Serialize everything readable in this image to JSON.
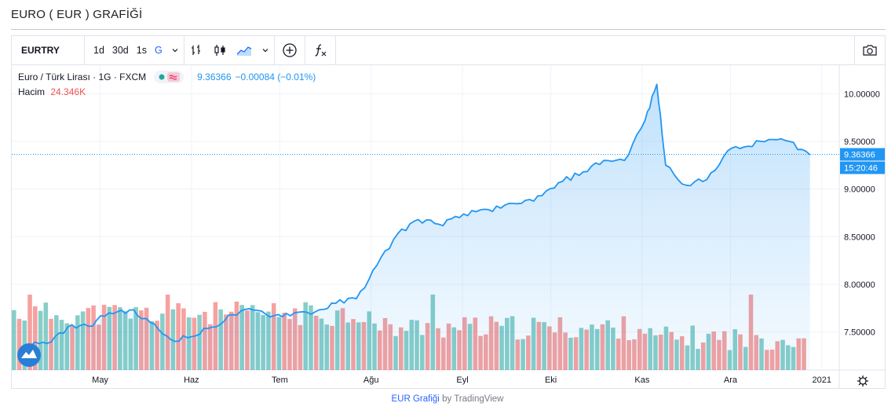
{
  "page": {
    "title": "EURO ( EUR ) GRAFİĞİ"
  },
  "toolbar": {
    "symbol": "EURTRY",
    "intervals": [
      "1d",
      "30d",
      "1s",
      "G"
    ],
    "active_interval": "G"
  },
  "legend": {
    "series_name": "Euro / Türk Lirası · 1G · FXCM",
    "last_value": "9.36366",
    "change": "−0.00084 (−0.01%)",
    "volume_label": "Hacim",
    "volume_value": "24.346K"
  },
  "price_axis": {
    "ticks": [
      "10.00000",
      "9.50000",
      "9.00000",
      "8.50000",
      "8.00000",
      "7.50000"
    ],
    "last_price_label": "9.36366",
    "countdown_label": "15:20:46"
  },
  "time_axis": {
    "ticks": [
      "May",
      "Haz",
      "Tem",
      "Ağu",
      "Eyl",
      "Eki",
      "Kas",
      "Ara",
      "2021"
    ]
  },
  "colors": {
    "line": "#2196f3",
    "up": "#26a69a",
    "down": "#ef5350",
    "accent": "#2962ff"
  },
  "footer": {
    "link_text": "EUR Grafiği",
    "by_text": "by TradingView"
  },
  "chart_data": {
    "type": "area",
    "x": [
      "2020-04-06",
      "2020-04-13",
      "2020-04-20",
      "2020-04-27",
      "2020-05-04",
      "2020-05-11",
      "2020-05-18",
      "2020-05-25",
      "2020-06-01",
      "2020-06-08",
      "2020-06-15",
      "2020-06-22",
      "2020-06-29",
      "2020-07-06",
      "2020-07-13",
      "2020-07-20",
      "2020-07-27",
      "2020-08-03",
      "2020-08-10",
      "2020-08-17",
      "2020-08-24",
      "2020-08-31",
      "2020-09-07",
      "2020-09-14",
      "2020-09-21",
      "2020-09-28",
      "2020-10-05",
      "2020-10-12",
      "2020-10-19",
      "2020-10-26",
      "2020-11-02",
      "2020-11-06",
      "2020-11-09",
      "2020-11-16",
      "2020-11-23",
      "2020-11-30",
      "2020-12-07",
      "2020-12-14",
      "2020-12-21",
      "2020-12-28"
    ],
    "series": [
      {
        "values": [
          7.37,
          7.38,
          7.55,
          7.56,
          7.7,
          7.73,
          7.6,
          7.42,
          7.45,
          7.55,
          7.68,
          7.73,
          7.67,
          7.7,
          7.71,
          7.8,
          7.85,
          8.2,
          8.53,
          8.68,
          8.63,
          8.7,
          8.78,
          8.8,
          8.85,
          8.93,
          9.08,
          9.18,
          9.3,
          9.3,
          9.72,
          10.1,
          9.25,
          9.04,
          9.1,
          9.4,
          9.45,
          9.52,
          9.5,
          9.36
        ]
      }
    ],
    "ylim": [
      7.1,
      10.3
    ],
    "price_ticks": [
      10.0,
      9.5,
      9.0,
      8.5,
      8.0,
      7.5
    ],
    "volume_bar_count": 150,
    "last_value": 9.36366,
    "grid": true
  }
}
